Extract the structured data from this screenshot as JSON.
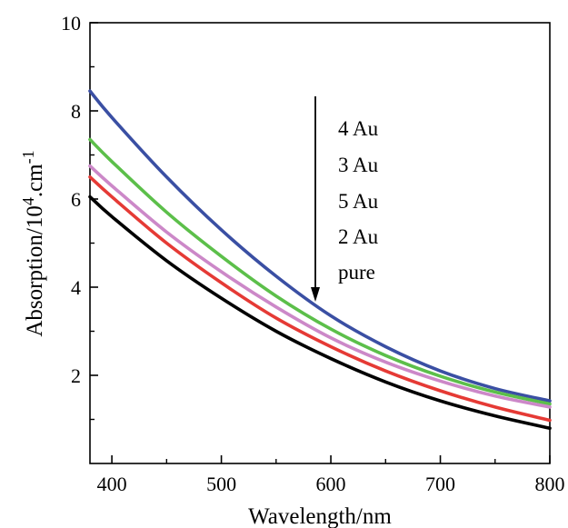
{
  "chart_data": {
    "type": "line",
    "xlabel": "Wavelength/nm",
    "ylabel": {
      "prefix": "Absorption/10",
      "sup1": "4",
      "middle": ".cm",
      "sup2": "-1"
    },
    "xlim": [
      380,
      800
    ],
    "ylim": [
      0,
      10
    ],
    "xticks": [
      400,
      500,
      600,
      700,
      800
    ],
    "yticks": [
      2,
      4,
      6,
      8,
      10
    ],
    "grid": false,
    "legend": {
      "placement": "top-center",
      "entries": [
        "4 Au",
        "3 Au",
        "5 Au",
        "2 Au",
        "pure"
      ],
      "arrow_direction": "down"
    },
    "x": [
      380,
      400,
      450,
      500,
      550,
      600,
      650,
      700,
      750,
      800
    ],
    "series": [
      {
        "name": "4 Au",
        "color": "#3a4fa3",
        "values": [
          8.45,
          7.85,
          6.5,
          5.3,
          4.25,
          3.35,
          2.65,
          2.1,
          1.7,
          1.42
        ]
      },
      {
        "name": "3 Au",
        "color": "#5cbf4a",
        "values": [
          7.35,
          6.85,
          5.7,
          4.7,
          3.8,
          3.05,
          2.45,
          1.98,
          1.62,
          1.35
        ]
      },
      {
        "name": "5 Au",
        "color": "#cc88c8",
        "values": [
          6.75,
          6.3,
          5.25,
          4.35,
          3.55,
          2.85,
          2.3,
          1.87,
          1.53,
          1.28
        ]
      },
      {
        "name": "2 Au",
        "color": "#e53a35",
        "values": [
          6.5,
          6.05,
          5.0,
          4.1,
          3.3,
          2.65,
          2.1,
          1.65,
          1.28,
          0.98
        ]
      },
      {
        "name": "pure",
        "color": "#000000",
        "values": [
          6.05,
          5.6,
          4.6,
          3.75,
          3.0,
          2.38,
          1.85,
          1.42,
          1.08,
          0.8
        ]
      }
    ]
  }
}
